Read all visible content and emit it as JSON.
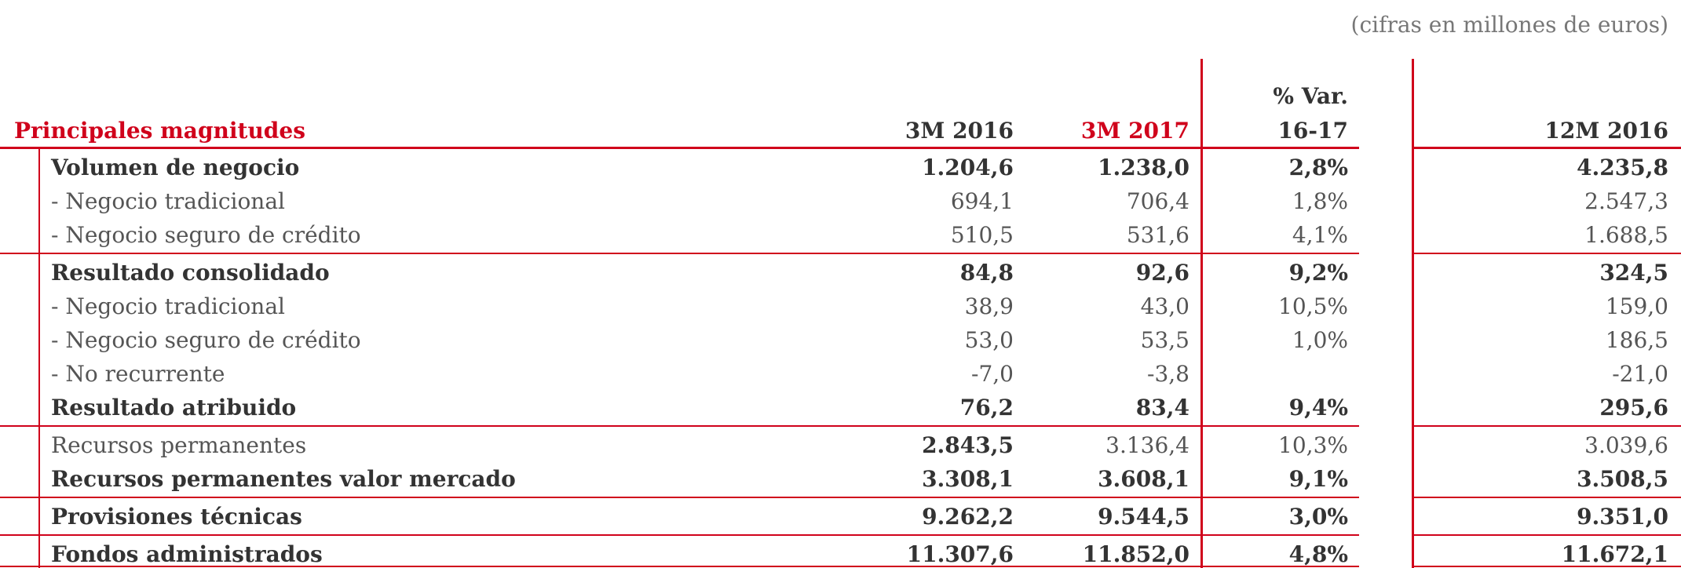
{
  "note": "(cifras en millones de euros)",
  "header": {
    "title": "Principales magnitudes",
    "columns": [
      "3M 2016",
      "3M 2017",
      [
        "% Var.",
        "16-17"
      ],
      "12M 2016"
    ]
  },
  "table": {
    "sections": [
      {
        "rows": [
          [
            "Volumen de negocio",
            "1.204,6",
            "1.238,0",
            "2,8%",
            "4.235,8"
          ],
          [
            "- Negocio tradicional",
            "694,1",
            "706,4",
            "1,8%",
            "2.547,3"
          ],
          [
            "- Negocio seguro de crédito",
            "510,5",
            "531,6",
            "4,1%",
            "1.688,5"
          ]
        ]
      },
      {
        "rows": [
          [
            "Resultado consolidado",
            "84,8",
            "92,6",
            "9,2%",
            "324,5"
          ],
          [
            "- Negocio tradicional",
            "38,9",
            "43,0",
            "10,5%",
            "159,0"
          ],
          [
            "- Negocio seguro de crédito",
            "53,0",
            "53,5",
            "1,0%",
            "186,5"
          ],
          [
            "- No recurrente",
            "-7,0",
            "-3,8",
            null,
            "-21,0"
          ],
          [
            "Resultado atribuido",
            "76,2",
            "83,4",
            "9,4%",
            "295,6"
          ]
        ]
      },
      {
        "rows": [
          [
            "Recursos permanentes",
            "2.843,5",
            "3.136,4",
            "10,3%",
            "3.039,6"
          ],
          [
            "Recursos permanentes valor mercado",
            "3.308,1",
            "3.608,1",
            "9,1%",
            "3.508,5"
          ]
        ]
      },
      {
        "rows": [
          [
            "Provisiones técnicas",
            "9.262,2",
            "9.544,5",
            "3,0%",
            "9.351,0"
          ]
        ]
      },
      {
        "rows": [
          [
            "Fondos administrados",
            "11.307,6",
            "11.852,0",
            "4,8%",
            "11.672,1"
          ]
        ]
      }
    ]
  }
}
